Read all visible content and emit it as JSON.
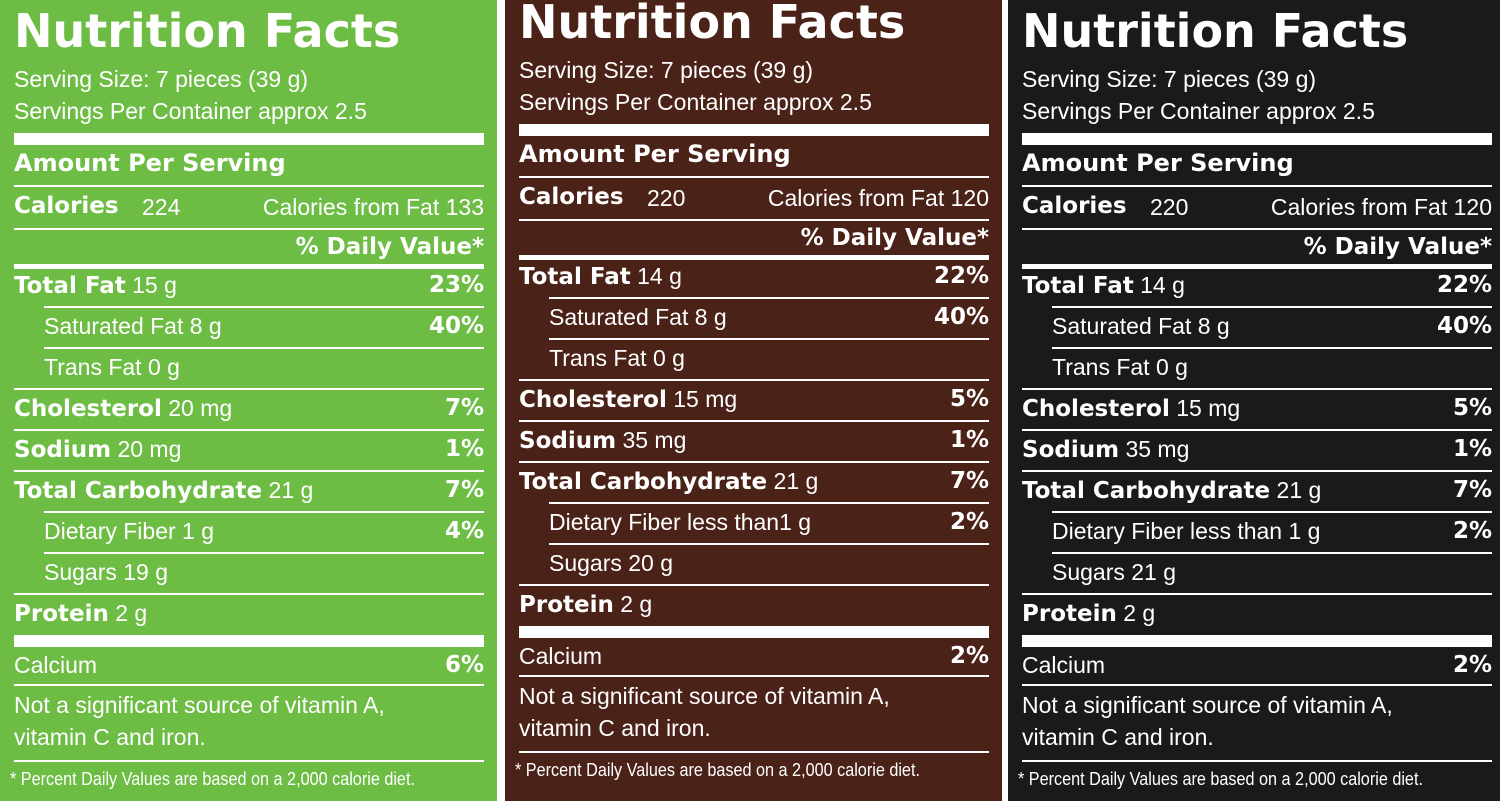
{
  "panels": [
    {
      "color": "#6dbd45",
      "title": "Nutrition Facts",
      "serving_size": "Serving Size: 7 pieces (39 g)",
      "servings": "Servings Per Container approx 2.5",
      "amount_header": "Amount Per Serving",
      "calories_label": "Calories",
      "calories": "224",
      "fat_calories_label": "Calories from Fat",
      "fat_calories": "133",
      "dv_header": "% Daily Value*",
      "rows": [
        {
          "label": "Total Fat",
          "amount": "15 g",
          "dv": "23%",
          "bold": true,
          "indent": false
        },
        {
          "label": "Saturated Fat",
          "amount": "8 g",
          "dv": "40%",
          "bold": false,
          "indent": true
        },
        {
          "label": "Trans Fat",
          "amount": "0 g",
          "dv": null,
          "bold": false,
          "indent": true
        },
        {
          "label": "Cholesterol",
          "amount": "20 mg",
          "dv": "7%",
          "bold": true,
          "indent": false
        },
        {
          "label": "Sodium",
          "amount": "20 mg",
          "dv": "1%",
          "bold": true,
          "indent": false
        },
        {
          "label": "Total Carbohydrate",
          "amount": "21 g",
          "dv": "7%",
          "bold": true,
          "indent": false
        },
        {
          "label": "Dietary Fiber",
          "amount": "1 g",
          "dv": "4%",
          "bold": false,
          "indent": true
        },
        {
          "label": "Sugars",
          "amount": "19 g",
          "dv": null,
          "bold": false,
          "indent": true
        },
        {
          "label": "Protein",
          "amount": "2 g",
          "dv": null,
          "bold": true,
          "indent": false
        }
      ],
      "calcium_label": "Calcium",
      "calcium": "6%",
      "note": [
        "Not a significant source of vitamin A,",
        "vitamin C and iron."
      ],
      "footnote": "* Percent Daily Values are based on a 2,000 calorie diet."
    },
    {
      "color": "#4b2218",
      "title": "Nutrition Facts",
      "serving_size": "Serving Size: 7 pieces (39 g)",
      "servings": "Servings Per Container approx 2.5",
      "amount_header": "Amount Per Serving",
      "calories_label": "Calories",
      "calories": "220",
      "fat_calories_label": "Calories from Fat",
      "fat_calories": "120",
      "dv_header": "% Daily Value*",
      "rows": [
        {
          "label": "Total Fat",
          "amount": "14 g",
          "dv": "22%",
          "bold": true,
          "indent": false
        },
        {
          "label": "Saturated Fat",
          "amount": "8 g",
          "dv": "40%",
          "bold": false,
          "indent": true
        },
        {
          "label": "Trans Fat",
          "amount": "0 g",
          "dv": null,
          "bold": false,
          "indent": true
        },
        {
          "label": "Cholesterol",
          "amount": "15 mg",
          "dv": "5%",
          "bold": true,
          "indent": false
        },
        {
          "label": "Sodium",
          "amount": "35 mg",
          "dv": "1%",
          "bold": true,
          "indent": false
        },
        {
          "label": "Total Carbohydrate",
          "amount": "21 g",
          "dv": "7%",
          "bold": true,
          "indent": false
        },
        {
          "label": "Dietary Fiber",
          "amount": "less than1 g",
          "dv": "2%",
          "bold": false,
          "indent": true
        },
        {
          "label": "Sugars",
          "amount": "20 g",
          "dv": null,
          "bold": false,
          "indent": true
        },
        {
          "label": "Protein",
          "amount": "2 g",
          "dv": null,
          "bold": true,
          "indent": false
        }
      ],
      "calcium_label": "Calcium",
      "calcium": "2%",
      "note": [
        "Not a significant source of vitamin A,",
        "vitamin C and iron."
      ],
      "footnote": "* Percent Daily Values are based on a 2,000 calorie diet."
    },
    {
      "color": "#1b1a1a",
      "title": "Nutrition Facts",
      "serving_size": "Serving Size: 7 pieces (39 g)",
      "servings": "Servings Per Container approx 2.5",
      "amount_header": "Amount Per Serving",
      "calories_label": "Calories",
      "calories": "220",
      "fat_calories_label": "Calories from Fat",
      "fat_calories": "120",
      "dv_header": "% Daily Value*",
      "rows": [
        {
          "label": "Total Fat",
          "amount": "14 g",
          "dv": "22%",
          "bold": true,
          "indent": false
        },
        {
          "label": "Saturated Fat",
          "amount": "8 g",
          "dv": "40%",
          "bold": false,
          "indent": true
        },
        {
          "label": "Trans Fat",
          "amount": "0 g",
          "dv": null,
          "bold": false,
          "indent": true
        },
        {
          "label": "Cholesterol",
          "amount": "15 mg",
          "dv": "5%",
          "bold": true,
          "indent": false
        },
        {
          "label": "Sodium",
          "amount": "35 mg",
          "dv": "1%",
          "bold": true,
          "indent": false
        },
        {
          "label": "Total Carbohydrate",
          "amount": "21 g",
          "dv": "7%",
          "bold": true,
          "indent": false
        },
        {
          "label": "Dietary Fiber",
          "amount": "less than 1 g",
          "dv": "2%",
          "bold": false,
          "indent": true
        },
        {
          "label": "Sugars",
          "amount": "21 g",
          "dv": null,
          "bold": false,
          "indent": true
        },
        {
          "label": "Protein",
          "amount": "2 g",
          "dv": null,
          "bold": true,
          "indent": false
        }
      ],
      "calcium_label": "Calcium",
      "calcium": "2%",
      "note": [
        "Not a significant source of vitamin A,",
        "vitamin C and iron."
      ],
      "footnote": "* Percent Daily Values are based on a 2,000 calorie diet."
    }
  ]
}
